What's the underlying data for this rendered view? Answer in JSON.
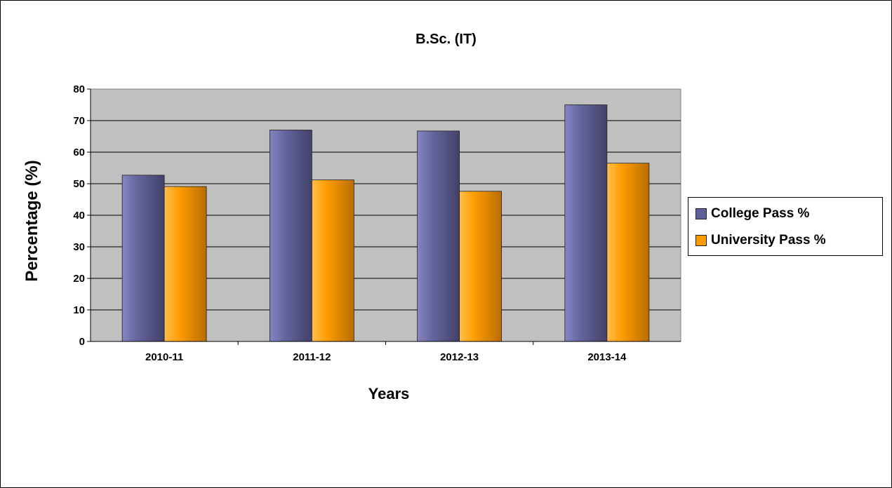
{
  "chart_data": {
    "type": "bar",
    "title": "B.Sc. (IT)",
    "xlabel": "Years",
    "ylabel": "Percentage (%)",
    "categories": [
      "2010-11",
      "2011-12",
      "2012-13",
      "2013-14"
    ],
    "series": [
      {
        "name": "College Pass %",
        "values": [
          52.7,
          67,
          66.7,
          75
        ],
        "color": "#5f5f99"
      },
      {
        "name": "University Pass %",
        "values": [
          49.1,
          51.2,
          47.6,
          56.5
        ],
        "color": "#ff9900"
      }
    ],
    "ylim": [
      0,
      80
    ],
    "yticks": [
      0,
      10,
      20,
      30,
      40,
      50,
      60,
      70,
      80
    ],
    "grid": true,
    "plot_background": "#c0c0c0",
    "legend_position": "right"
  }
}
